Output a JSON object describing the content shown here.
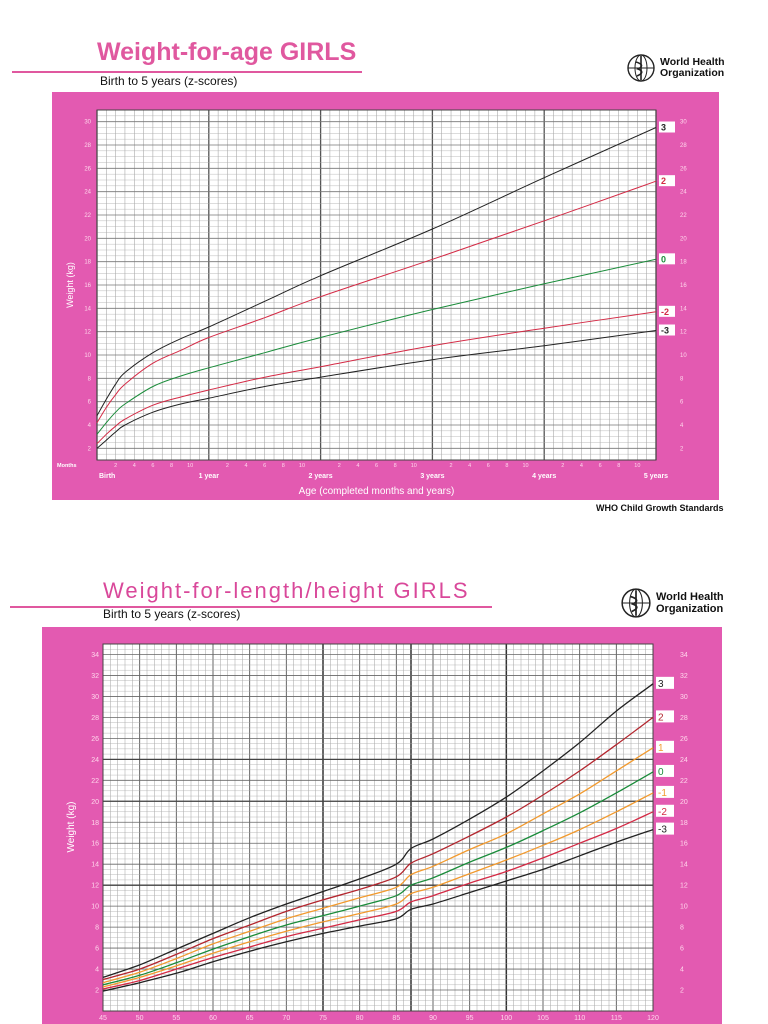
{
  "colors": {
    "pink_frame": "#e35ab1",
    "z3": "#222222",
    "z2": "#d42a45",
    "z1": "#f29a2e",
    "z0": "#1a8c3a",
    "label_light": "#ffd7ec"
  },
  "org": {
    "line1": "World Health",
    "line2": "Organization",
    "logo_icon": "who-emblem-icon"
  },
  "chart_data": [
    {
      "type": "line",
      "title": "Weight-for-age GIRLS",
      "subtitle": "Birth to 5 years (z-scores)",
      "xlabel": "Age (completed months and years)",
      "ylabel": "Weight (kg)",
      "xlim": [
        0,
        60
      ],
      "ylim": [
        1,
        31
      ],
      "grid": true,
      "x_unit_label": "Months",
      "x_major_labels": [
        "Birth",
        "1 year",
        "2 years",
        "3 years",
        "4 years",
        "5 years"
      ],
      "x_month_ticks": [
        "2",
        "4",
        "6",
        "8",
        "10"
      ],
      "y_ticks": [
        "2",
        "4",
        "6",
        "8",
        "10",
        "12",
        "14",
        "16",
        "18",
        "20",
        "22",
        "24",
        "26",
        "28",
        "30"
      ],
      "footer": "WHO Child Growth Standards",
      "x": [
        0,
        1,
        2,
        3,
        6,
        9,
        12,
        18,
        24,
        36,
        48,
        60
      ],
      "series": [
        {
          "name": "3",
          "color": "#222222",
          "values": [
            4.8,
            6.2,
            7.5,
            8.5,
            10.2,
            11.4,
            12.4,
            14.6,
            16.8,
            20.8,
            25.2,
            29.5
          ]
        },
        {
          "name": "2",
          "color": "#d42a45",
          "values": [
            4.2,
            5.5,
            6.6,
            7.5,
            9.3,
            10.4,
            11.5,
            13.2,
            15.0,
            18.2,
            21.5,
            24.9
          ]
        },
        {
          "name": "0",
          "color": "#1a8c3a",
          "values": [
            3.2,
            4.2,
            5.1,
            5.8,
            7.3,
            8.2,
            8.9,
            10.2,
            11.5,
            13.9,
            16.1,
            18.2
          ]
        },
        {
          "name": "-2",
          "color": "#d42a45",
          "values": [
            2.4,
            3.2,
            3.9,
            4.5,
            5.7,
            6.4,
            7.0,
            8.1,
            9.0,
            10.8,
            12.3,
            13.7
          ]
        },
        {
          "name": "-3",
          "color": "#222222",
          "values": [
            2.0,
            2.7,
            3.4,
            4.0,
            5.1,
            5.8,
            6.3,
            7.3,
            8.1,
            9.6,
            10.8,
            12.1
          ]
        }
      ]
    },
    {
      "type": "line",
      "title": "Weight-for-length/height GIRLS",
      "subtitle": "Birth to 5 years (z-scores)",
      "xlabel": "",
      "ylabel": "Weight (kg)",
      "xlim": [
        45,
        120
      ],
      "ylim": [
        0,
        35
      ],
      "grid": true,
      "x_ticks": [
        "45",
        "50",
        "55",
        "60",
        "65",
        "70",
        "75",
        "80",
        "85",
        "90",
        "95",
        "100",
        "105",
        "110",
        "115",
        "120"
      ],
      "y_ticks": [
        "2",
        "4",
        "6",
        "8",
        "10",
        "12",
        "14",
        "16",
        "18",
        "20",
        "22",
        "24",
        "26",
        "28",
        "30",
        "32",
        "34"
      ],
      "x": [
        45,
        50,
        55,
        60,
        65,
        70,
        75,
        80,
        85,
        87,
        90,
        95,
        100,
        105,
        110,
        115,
        120
      ],
      "series": [
        {
          "name": "3",
          "color": "#222222",
          "values": [
            3.2,
            4.4,
            5.9,
            7.4,
            8.9,
            10.2,
            11.4,
            12.6,
            14.0,
            15.5,
            16.4,
            18.3,
            20.4,
            22.9,
            25.6,
            28.6,
            31.2
          ]
        },
        {
          "name": "2",
          "color": "#b3262e",
          "values": [
            3.0,
            4.0,
            5.4,
            6.9,
            8.2,
            9.5,
            10.6,
            11.6,
            12.8,
            14.1,
            15.0,
            16.7,
            18.5,
            20.6,
            22.9,
            25.4,
            28.0
          ]
        },
        {
          "name": "1",
          "color": "#f29a2e",
          "values": [
            2.7,
            3.7,
            5.0,
            6.4,
            7.6,
            8.8,
            9.8,
            10.8,
            11.8,
            13.0,
            13.8,
            15.4,
            16.9,
            18.8,
            20.7,
            22.9,
            25.1
          ]
        },
        {
          "name": "0",
          "color": "#1a8c3a",
          "values": [
            2.5,
            3.4,
            4.6,
            5.9,
            7.1,
            8.2,
            9.1,
            10.0,
            11.0,
            12.0,
            12.7,
            14.2,
            15.6,
            17.2,
            18.9,
            20.8,
            22.8
          ]
        },
        {
          "name": "-1",
          "color": "#f29a2e",
          "values": [
            2.3,
            3.2,
            4.3,
            5.5,
            6.6,
            7.6,
            8.5,
            9.3,
            10.2,
            11.2,
            11.8,
            13.1,
            14.4,
            15.8,
            17.3,
            19.0,
            20.8
          ]
        },
        {
          "name": "-2",
          "color": "#d42a45",
          "values": [
            2.1,
            2.9,
            4.0,
            5.1,
            6.1,
            7.1,
            7.9,
            8.7,
            9.5,
            10.4,
            11.0,
            12.2,
            13.3,
            14.6,
            16.0,
            17.4,
            19.0
          ]
        },
        {
          "name": "-3",
          "color": "#222222",
          "values": [
            1.9,
            2.7,
            3.6,
            4.7,
            5.7,
            6.6,
            7.4,
            8.1,
            8.8,
            9.7,
            10.2,
            11.3,
            12.4,
            13.5,
            14.8,
            16.1,
            17.3
          ]
        }
      ]
    }
  ]
}
